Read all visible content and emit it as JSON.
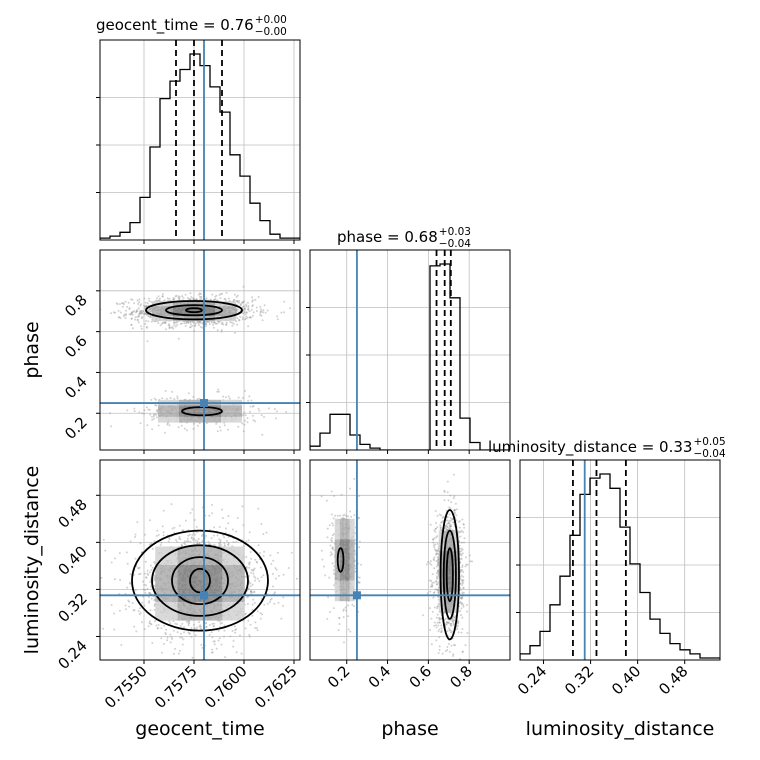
{
  "chart_data": {
    "type": "corner",
    "parameters": [
      "geocent_time",
      "phase",
      "luminosity_distance"
    ],
    "truths": {
      "geocent_time": 0.758,
      "phase": 0.25,
      "luminosity_distance": 0.31
    },
    "colors": {
      "truth": "#4682b4",
      "hist": "#000000",
      "quantile": "#000000",
      "grid": "#bfbfbf",
      "samples": "#9a9a9a"
    },
    "titles": [
      {
        "param": "geocent_time",
        "text": "geocent_time = 0.76",
        "upper": "+0.00",
        "lower": "−0.00"
      },
      {
        "param": "phase",
        "text": "phase = 0.68",
        "upper": "+0.03",
        "lower": "−0.04"
      },
      {
        "param": "luminosity_distance",
        "text": "luminosity_distance = 0.33",
        "upper": "+0.05",
        "lower": "−0.04"
      }
    ],
    "axes": {
      "geocent_time": {
        "range": [
          0.7528,
          0.7628
        ],
        "ticks": [
          "0.7550",
          "0.7575",
          "0.7600",
          "0.7625"
        ],
        "tick_values": [
          0.755,
          0.7575,
          0.76,
          0.7625
        ]
      },
      "phase": {
        "range": [
          0.02,
          1.0
        ],
        "ticks": [
          "0.2",
          "0.4",
          "0.6",
          "0.8"
        ],
        "tick_values": [
          0.2,
          0.4,
          0.6,
          0.8
        ]
      },
      "luminosity_distance": {
        "range": [
          0.2,
          0.54
        ],
        "ticks": [
          "0.24",
          "0.32",
          "0.40",
          "0.48"
        ],
        "tick_values": [
          0.24,
          0.32,
          0.4,
          0.48
        ]
      }
    },
    "histograms": {
      "geocent_time": {
        "bin_start": 0.7528,
        "bin_width": 0.0005,
        "values": [
          1,
          2,
          4,
          9,
          22,
          48,
          73,
          82,
          88,
          96,
          90,
          79,
          66,
          44,
          33,
          19,
          10,
          3,
          1,
          1
        ],
        "quantiles": [
          0.7566,
          0.7575,
          0.7589
        ]
      },
      "phase": {
        "bin_start": 0.02,
        "bin_width": 0.049,
        "values": [
          2,
          9,
          19,
          19,
          8,
          3,
          1,
          0,
          0,
          0,
          0,
          0,
          98,
          99,
          81,
          17,
          4,
          0,
          0,
          0
        ],
        "quantiles": [
          0.64,
          0.68,
          0.71
        ]
      },
      "luminosity_distance": {
        "bin_start": 0.2,
        "bin_width": 0.017,
        "values": [
          3,
          7,
          14,
          27,
          41,
          61,
          81,
          89,
          91,
          84,
          65,
          47,
          33,
          20,
          13,
          8,
          5,
          3,
          1,
          1
        ],
        "quantiles": [
          0.29,
          0.33,
          0.38
        ]
      }
    },
    "labels": {
      "x": [
        "geocent_time",
        "phase",
        "luminosity_distance"
      ],
      "y": [
        "phase",
        "luminosity_distance"
      ]
    },
    "clusters": [
      {
        "panel": "geocent_time-phase",
        "center": [
          0.7575,
          0.7
        ],
        "spread": [
          0.0015,
          0.035
        ],
        "n": 1400
      },
      {
        "panel": "geocent_time-phase",
        "center": [
          0.7578,
          0.21
        ],
        "spread": [
          0.0015,
          0.04
        ],
        "n": 350
      },
      {
        "panel": "geocent_time-luminosity_distance",
        "center": [
          0.7578,
          0.33
        ],
        "spread": [
          0.0016,
          0.045
        ],
        "n": 1600
      },
      {
        "panel": "phase-luminosity_distance",
        "center": [
          0.7,
          0.35
        ],
        "spread": [
          0.035,
          0.05
        ],
        "n": 1300
      },
      {
        "panel": "phase-luminosity_distance",
        "center": [
          0.19,
          0.37
        ],
        "spread": [
          0.035,
          0.05
        ],
        "n": 350
      }
    ],
    "contours": [
      {
        "panel": "geocent_time-phase",
        "center": [
          0.7575,
          0.705
        ],
        "radii": [
          [
            0.0024,
            0.045
          ],
          [
            0.0014,
            0.025
          ],
          [
            0.0004,
            0.01
          ]
        ]
      },
      {
        "panel": "geocent_time-phase",
        "center": [
          0.7579,
          0.21
        ],
        "radii": [
          [
            0.001,
            0.02
          ]
        ]
      },
      {
        "panel": "geocent_time-luminosity_distance",
        "center": [
          0.7578,
          0.335
        ],
        "radii": [
          [
            0.0034,
            0.085
          ],
          [
            0.0024,
            0.06
          ],
          [
            0.0014,
            0.04
          ],
          [
            0.0005,
            0.02
          ]
        ]
      },
      {
        "panel": "phase-luminosity_distance",
        "center": [
          0.705,
          0.345
        ],
        "radii": [
          [
            0.045,
            0.11
          ],
          [
            0.03,
            0.075
          ],
          [
            0.015,
            0.045
          ]
        ]
      },
      {
        "panel": "phase-luminosity_distance",
        "center": [
          0.17,
          0.37
        ],
        "radii": [
          [
            0.014,
            0.02
          ]
        ]
      }
    ]
  }
}
